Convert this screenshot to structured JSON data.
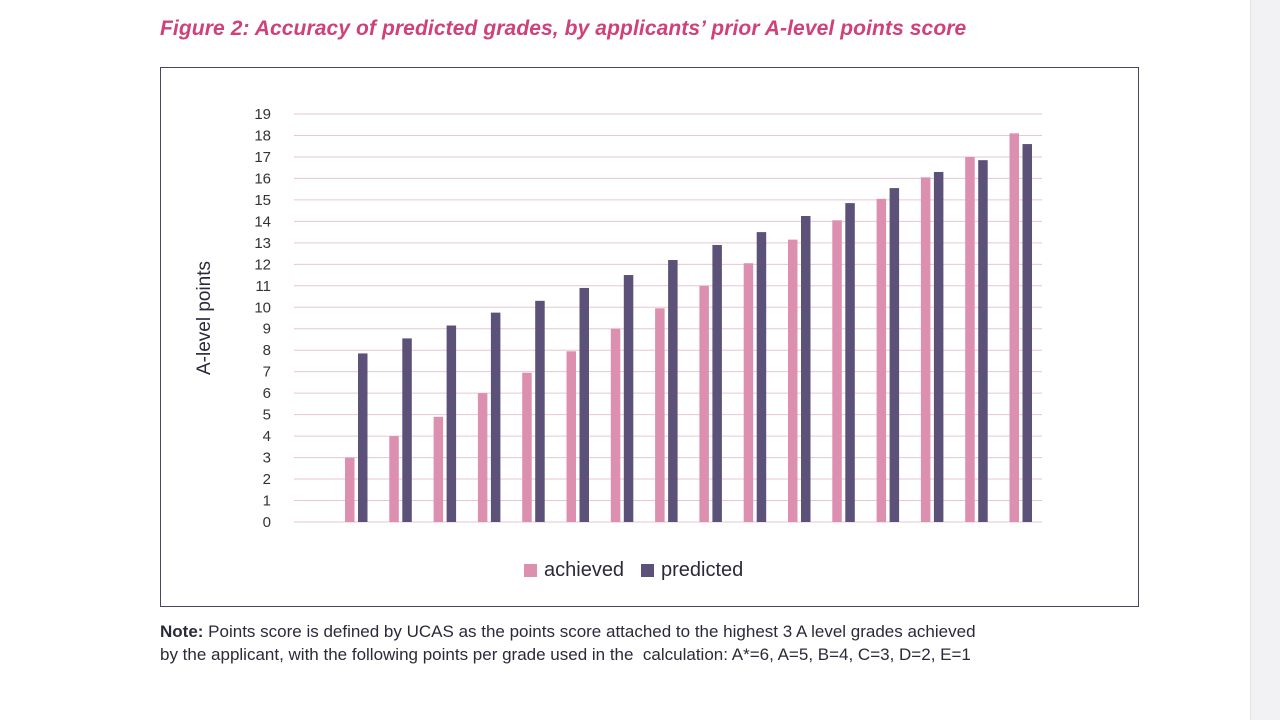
{
  "figure": {
    "title": "Figure 2: Accuracy of predicted grades, by applicants’ prior A-level points score"
  },
  "note": {
    "label": "Note:",
    "line1": " Points score is defined by UCAS as the points score attached to the highest 3 A level grades achieved",
    "line2": "by the applicant, with the following points per grade used in the  calculation: A*=6, A=5, B=4, C=3, D=2, E=1"
  },
  "colors": {
    "title": "#d0407a",
    "achieved": "#dd8fb0",
    "predicted": "#5c5178",
    "grid": "#e8c6d4",
    "border": "#4c4464"
  },
  "chart_data": {
    "type": "bar",
    "title": "",
    "xlabel": "",
    "ylabel": "A-level points",
    "ylim": [
      0,
      19
    ],
    "yticks": [
      0,
      1,
      2,
      3,
      4,
      5,
      6,
      7,
      8,
      9,
      10,
      11,
      12,
      13,
      14,
      15,
      16,
      17,
      18,
      19
    ],
    "grid": true,
    "legend": "bottom-center",
    "series": [
      {
        "name": "achieved",
        "values": [
          3,
          4,
          4.9,
          6,
          6.95,
          7.95,
          9,
          9.95,
          11,
          12.05,
          13.15,
          14.05,
          15.05,
          16.05,
          17,
          18.1
        ]
      },
      {
        "name": "predicted",
        "values": [
          7.85,
          8.55,
          9.15,
          9.75,
          10.3,
          10.9,
          11.5,
          12.2,
          12.9,
          13.5,
          14.25,
          14.85,
          15.55,
          16.3,
          16.85,
          17.6
        ]
      }
    ]
  }
}
